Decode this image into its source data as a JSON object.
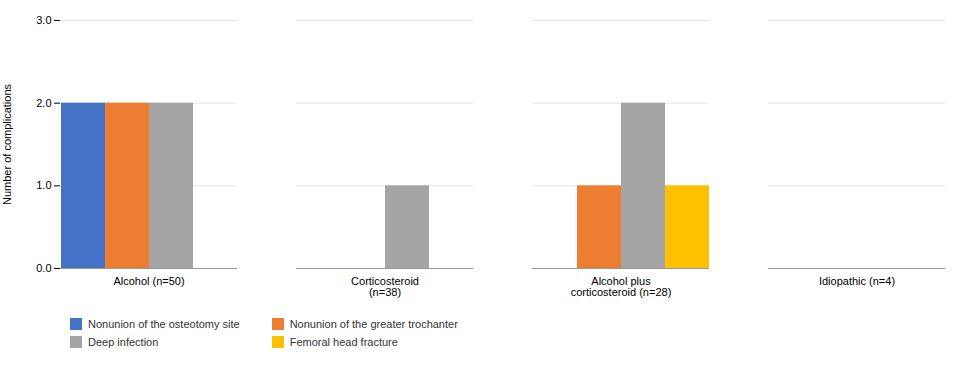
{
  "chart_data": {
    "type": "bar",
    "categories": [
      "Alcohol (n=50)",
      "Corticosteroid\n(n=38)",
      "Alcohol plus\ncorticosteroid (n=28)",
      "Idiopathic (n=4)"
    ],
    "series": [
      {
        "name": "Nonunion of the osteotomy site",
        "color": "#4472C4",
        "values": [
          2,
          0,
          0,
          0
        ]
      },
      {
        "name": "Nonunion of the greater trochanter",
        "color": "#ED7D31",
        "values": [
          2,
          0,
          1,
          0
        ]
      },
      {
        "name": "Deep infection",
        "color": "#A5A5A5",
        "values": [
          2,
          1,
          2,
          0
        ]
      },
      {
        "name": "Femoral head fracture",
        "color": "#FFC000",
        "values": [
          0,
          0,
          1,
          0
        ]
      }
    ],
    "ylabel": "Number of complications",
    "ylim": [
      0,
      3
    ],
    "yticks": [
      0,
      1,
      2,
      3
    ],
    "grid": true,
    "legend": "bottom"
  }
}
